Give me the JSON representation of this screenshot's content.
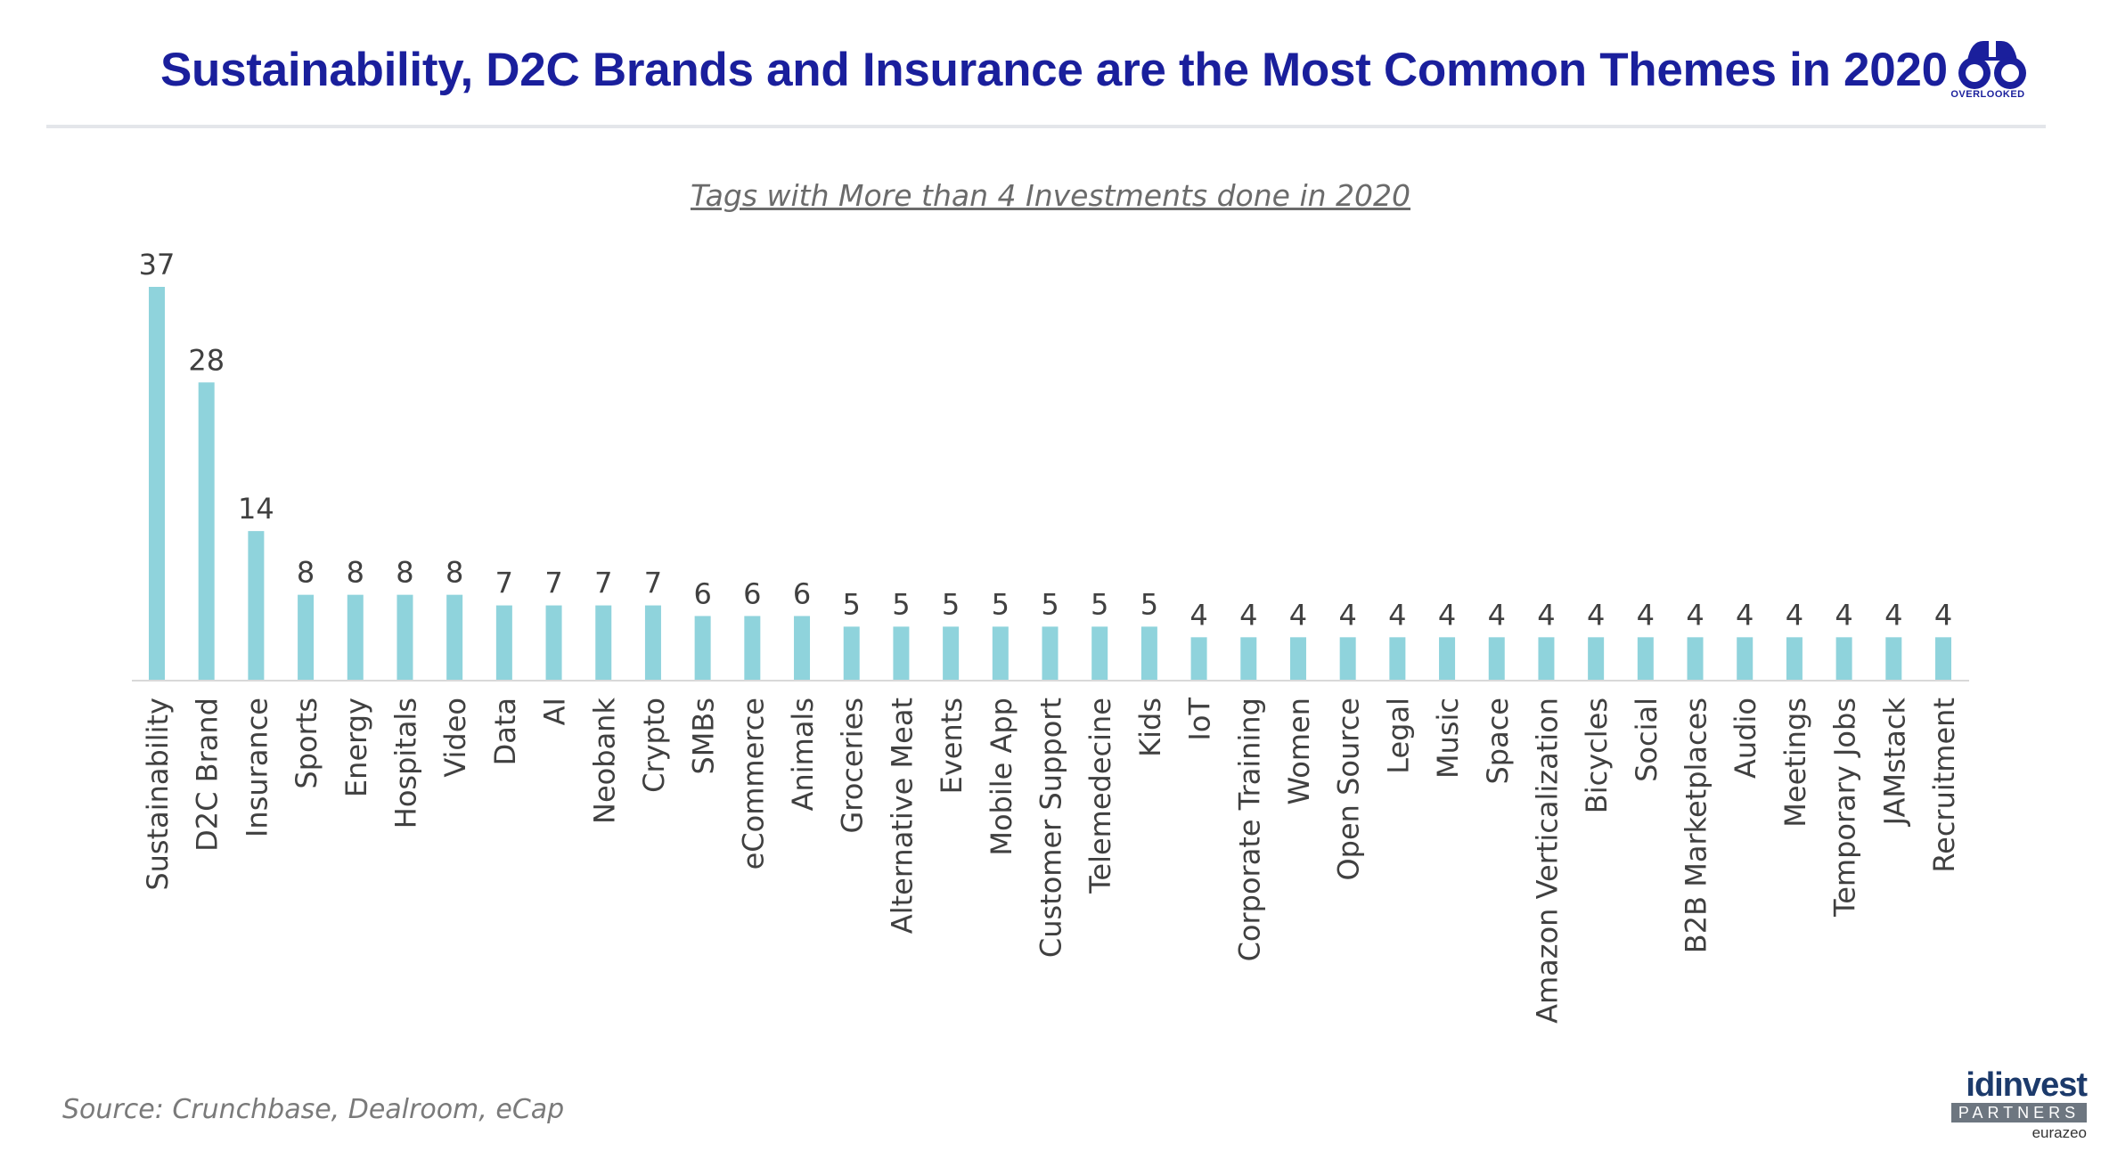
{
  "header": {
    "title": "Sustainability, D2C Brands and Insurance are the Most Common Themes in 2020",
    "logo_text": "OVERLOOKED"
  },
  "footer": {
    "source": "Source: Crunchbase, Dealroom, eCap",
    "brand_name": "idinvest",
    "brand_sub": "PARTNERS",
    "brand_parent": "eurazeo"
  },
  "colors": {
    "bar": "#8fd3dc",
    "title": "#1a1f9c",
    "axis": "#d9d9d9",
    "label": "#404040"
  },
  "chart_data": {
    "type": "bar",
    "title": "Tags with More than 4 Investments done in 2020",
    "xlabel": "",
    "ylabel": "",
    "ylim": [
      0,
      37
    ],
    "grid": false,
    "legend": "none",
    "categories": [
      "Sustainability",
      "D2C Brand",
      "Insurance",
      "Sports",
      "Energy",
      "Hospitals",
      "Video",
      "Data",
      "AI",
      "Neobank",
      "Crypto",
      "SMBs",
      "eCommerce",
      "Animals",
      "Groceries",
      "Alternative Meat",
      "Events",
      "Mobile App",
      "Customer Support",
      "Telemedecine",
      "Kids",
      "IoT",
      "Corporate Training",
      "Women",
      "Open Source",
      "Legal",
      "Music",
      "Space",
      "Amazon Verticalization",
      "Bicycles",
      "Social",
      "B2B Marketplaces",
      "Audio",
      "Meetings",
      "Temporary Jobs",
      "JAMstack",
      "Recruitment"
    ],
    "values": [
      37,
      28,
      14,
      8,
      8,
      8,
      8,
      7,
      7,
      7,
      7,
      6,
      6,
      6,
      5,
      5,
      5,
      5,
      5,
      5,
      5,
      4,
      4,
      4,
      4,
      4,
      4,
      4,
      4,
      4,
      4,
      4,
      4,
      4,
      4,
      4,
      4
    ]
  }
}
